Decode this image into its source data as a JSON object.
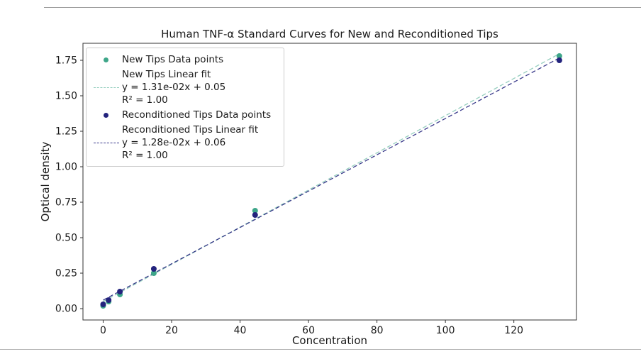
{
  "chart_data": {
    "type": "scatter",
    "title": "Human TNF-α Standard Curves for New and Reconditioned Tips",
    "xlabel": "Concentration",
    "ylabel": "Optical density",
    "xlim": [
      -5.9,
      138.3
    ],
    "ylim": [
      -0.08,
      1.87
    ],
    "x_tick_values": [
      0,
      20,
      40,
      60,
      80,
      100,
      120
    ],
    "x_tick_labels": [
      "0",
      "20",
      "40",
      "60",
      "80",
      "100",
      "120"
    ],
    "y_tick_values": [
      0,
      0.25,
      0.5,
      0.75,
      1.0,
      1.25,
      1.5,
      1.75
    ],
    "y_tick_labels": [
      "0.00",
      "0.25",
      "0.50",
      "0.75",
      "1.00",
      "1.25",
      "1.50",
      "1.75"
    ],
    "grid": false,
    "legend_position": "upper-left",
    "series": [
      {
        "name": "New Tips Data points",
        "kind": "scatter",
        "color": "#3ea689",
        "x": [
          0,
          1.6,
          4.9,
          14.8,
          44.4,
          133.3
        ],
        "y": [
          0.02,
          0.05,
          0.1,
          0.25,
          0.69,
          1.78
        ]
      },
      {
        "name": "New Tips Linear fit",
        "kind": "line",
        "dash": true,
        "color": "#3ea689",
        "alpha": 0.55,
        "slope": 0.0131,
        "intercept": 0.05,
        "x_range": [
          0,
          133.3
        ],
        "equation": "y = 1.31e-02x + 0.05",
        "r_squared": "R² = 1.00"
      },
      {
        "name": "Reconditioned Tips Data points",
        "kind": "scatter",
        "color": "#23237d",
        "x": [
          0,
          1.6,
          4.9,
          14.8,
          44.4,
          133.3
        ],
        "y": [
          0.03,
          0.06,
          0.12,
          0.28,
          0.66,
          1.75
        ]
      },
      {
        "name": "Reconditioned Tips Linear fit",
        "kind": "line",
        "dash": true,
        "color": "#23237d",
        "alpha": 0.9,
        "slope": 0.0128,
        "intercept": 0.06,
        "x_range": [
          0,
          133.3
        ],
        "equation": "y = 1.28e-02x + 0.06",
        "r_squared": "R² = 1.00"
      }
    ],
    "legend_entries": [
      {
        "marker": "dot",
        "color": "#3ea689",
        "alpha": 1,
        "lines": [
          "New Tips Data points"
        ]
      },
      {
        "marker": "dash",
        "color": "#3ea689",
        "alpha": 0.55,
        "lines": [
          "New Tips Linear fit",
          "y = 1.31e-02x + 0.05",
          "R² = 1.00"
        ]
      },
      {
        "marker": "dot",
        "color": "#23237d",
        "alpha": 1,
        "lines": [
          "Reconditioned Tips Data points"
        ]
      },
      {
        "marker": "dash",
        "color": "#23237d",
        "alpha": 0.9,
        "lines": [
          "Reconditioned Tips Linear fit",
          "y = 1.28e-02x + 0.06",
          "R² = 1.00"
        ]
      }
    ]
  }
}
